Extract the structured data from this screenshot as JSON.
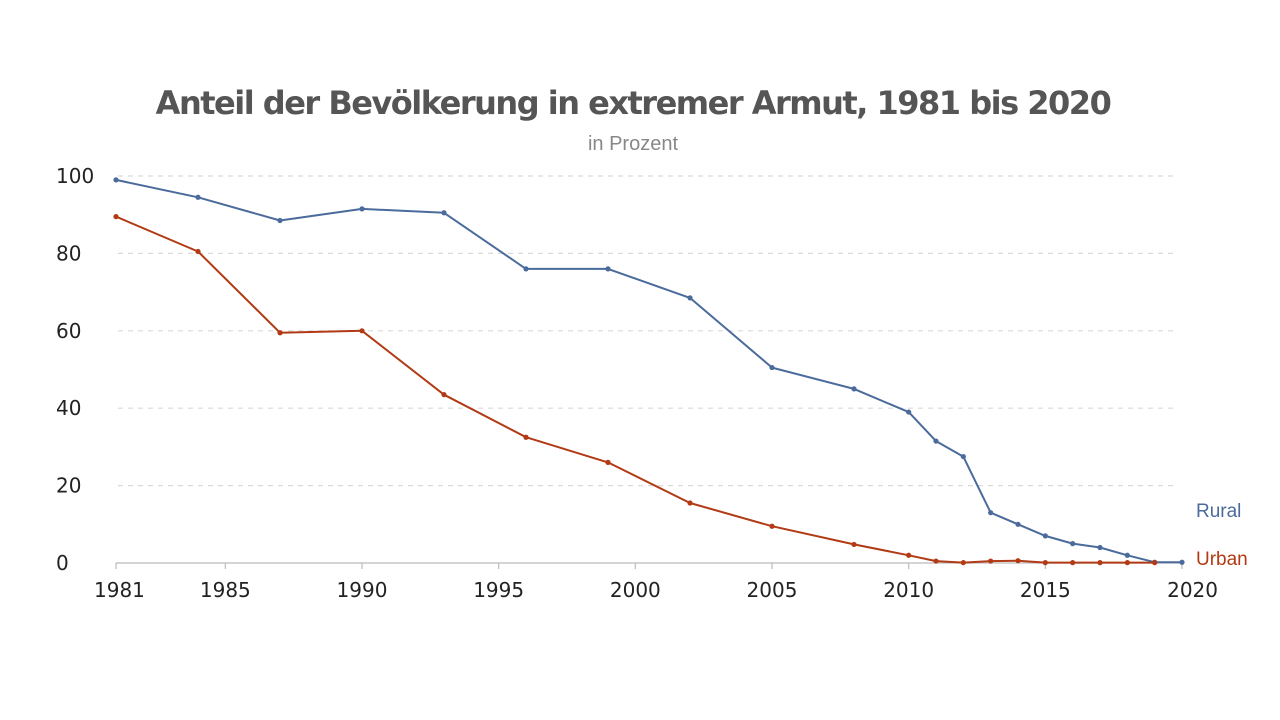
{
  "chart_data": {
    "type": "line",
    "title": "Anteil der Bevölkerung in extremer Armut, 1981 bis 2020",
    "subtitle": "in Prozent",
    "xlabel": "",
    "ylabel": "",
    "xlim": [
      1981,
      2020
    ],
    "ylim": [
      0,
      100
    ],
    "x_ticks": [
      1981,
      1985,
      1990,
      1995,
      2000,
      2005,
      2010,
      2015,
      2020
    ],
    "y_ticks": [
      0,
      20,
      40,
      60,
      80,
      100
    ],
    "grid": "horizontal dashed",
    "legend": "line-end labels",
    "series": [
      {
        "name": "Rural",
        "color": "#4a6b9b",
        "x": [
          1981,
          1984,
          1987,
          1990,
          1993,
          1996,
          1999,
          2002,
          2005,
          2008,
          2010,
          2011,
          2012,
          2013,
          2014,
          2015,
          2016,
          2017,
          2018,
          2019,
          2020
        ],
        "values": [
          99,
          94.5,
          88.5,
          91.5,
          90.5,
          76,
          76,
          68.5,
          50.5,
          45,
          39,
          31.5,
          27.5,
          13,
          10,
          7,
          5,
          4,
          2,
          0.2,
          0.2
        ]
      },
      {
        "name": "Urban",
        "color": "#b23a14",
        "x": [
          1981,
          1984,
          1987,
          1990,
          1993,
          1996,
          1999,
          2002,
          2005,
          2008,
          2010,
          2011,
          2012,
          2013,
          2014,
          2015,
          2016,
          2017,
          2018,
          2019
        ],
        "values": [
          89.5,
          80.5,
          59.5,
          60,
          43.5,
          32.5,
          26,
          15.5,
          9.5,
          4.8,
          2,
          0.5,
          0.1,
          0.5,
          0.6,
          0.1,
          0.1,
          0.1,
          0.1,
          0.1
        ]
      }
    ]
  }
}
